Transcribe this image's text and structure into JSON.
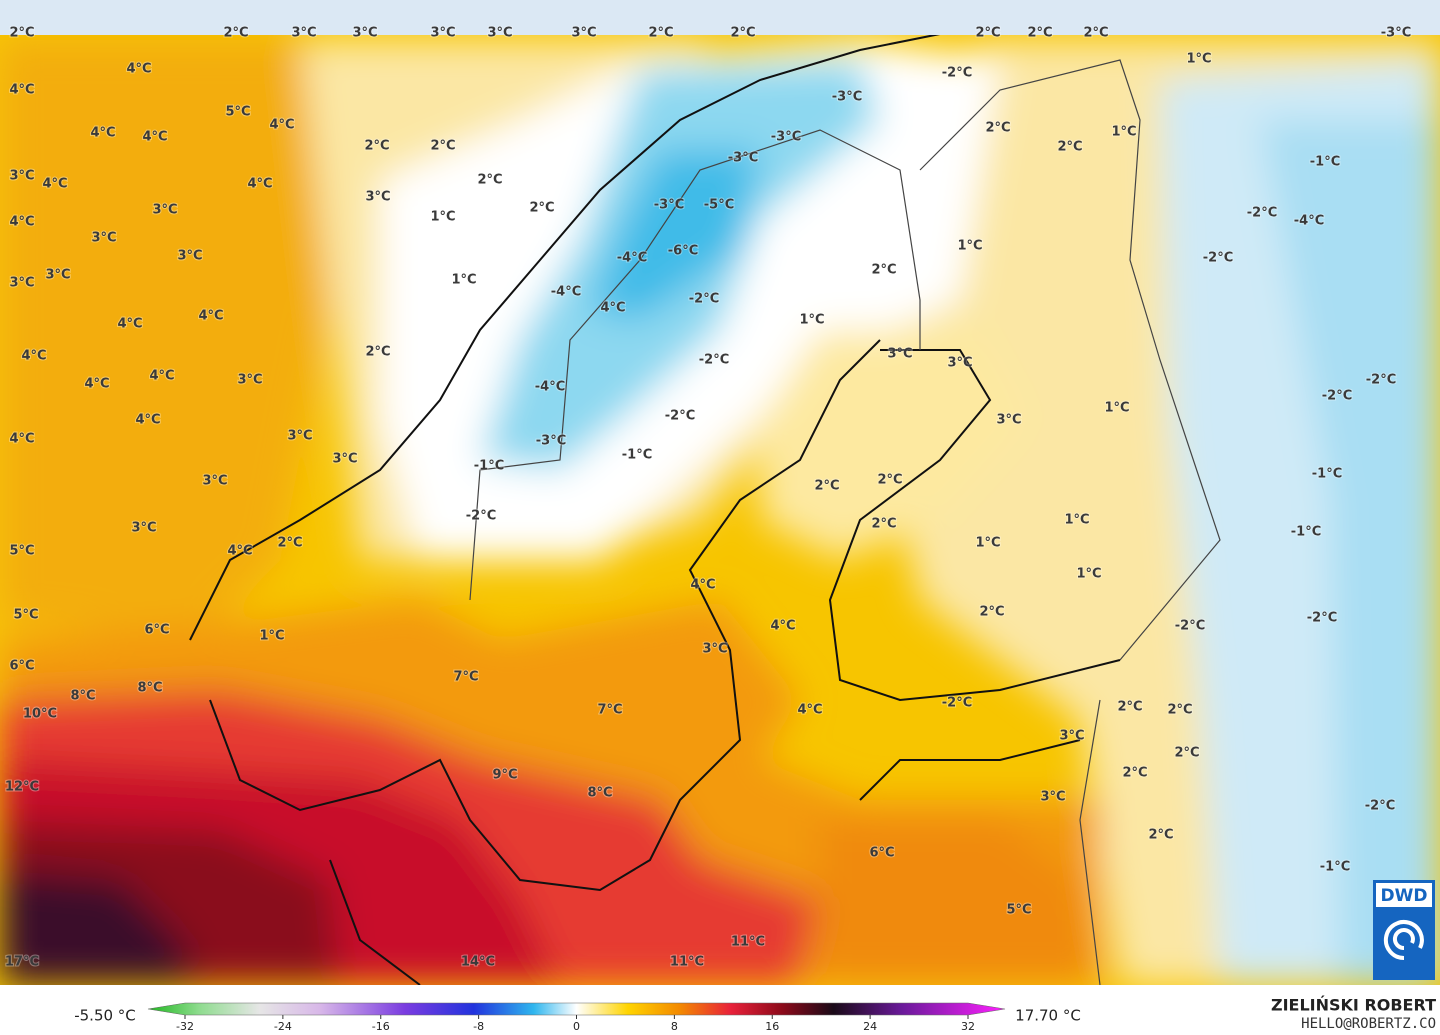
{
  "map": {
    "labels": [
      "2°C",
      "2°C",
      "3°C",
      "3°C",
      "3°C",
      "3°C",
      "3°C",
      "2°C",
      "2°C",
      "2°C",
      "2°C",
      "2°C",
      "-3°C",
      "4°C",
      "4°C",
      "5°C",
      "4°C",
      "4°C",
      "4°C",
      "2°C",
      "2°C",
      "3°C",
      "4°C",
      "4°C",
      "2°C",
      "3°C",
      "2°C",
      "3°C",
      "1°C",
      "4°C",
      "3°C",
      "3°C",
      "3°C",
      "3°C",
      "1°C",
      "4°C",
      "4°C",
      "4°C",
      "2°C",
      "4°C",
      "4°C",
      "3°C",
      "4°C",
      "4°C",
      "3°C",
      "3°C",
      "3°C",
      "3°C",
      "5°C",
      "4°C",
      "2°C",
      "5°C",
      "6°C",
      "1°C",
      "6°C",
      "8°C",
      "8°C",
      "10°C",
      "12°C",
      "17°C",
      "-3°C",
      "-3°C",
      "-3°C",
      "-3°C",
      "-5°C",
      "-6°C",
      "-4°C",
      "-4°C",
      "4°C",
      "-2°C",
      "-2°C",
      "-4°C",
      "-2°C",
      "-3°C",
      "-1°C",
      "-1°C",
      "-2°C",
      "1°C",
      "2°C",
      "1°C",
      "-2°C",
      "2°C",
      "2°C",
      "1°C",
      "1°C",
      "-1°C",
      "-2°C",
      "-4°C",
      "-2°C",
      "3°C",
      "3°C",
      "3°C",
      "1°C",
      "-2°C",
      "-2°C",
      "2°C",
      "2°C",
      "2°C",
      "1°C",
      "1°C",
      "1°C",
      "-1°C",
      "-1°C",
      "4°C",
      "4°C",
      "3°C",
      "2°C",
      "-2°C",
      "-2°C",
      "7°C",
      "7°C",
      "4°C",
      "-2°C",
      "2°C",
      "2°C",
      "3°C",
      "2°C",
      "9°C",
      "2°C",
      "8°C",
      "3°C",
      "-2°C",
      "2°C",
      "6°C",
      "-1°C",
      "5°C",
      "11°C",
      "14°C",
      "11°C"
    ],
    "colorbar": {
      "min_label": "-5.50 °C",
      "max_label": "17.70 °C",
      "ticks": [
        -32,
        -24,
        -16,
        -8,
        0,
        8,
        16,
        24,
        32
      ]
    },
    "credit": {
      "name": "ZIELIŃSKI ROBERT",
      "email": "HELLO@ROBERTZ.CO"
    },
    "logo": "DWD"
  }
}
